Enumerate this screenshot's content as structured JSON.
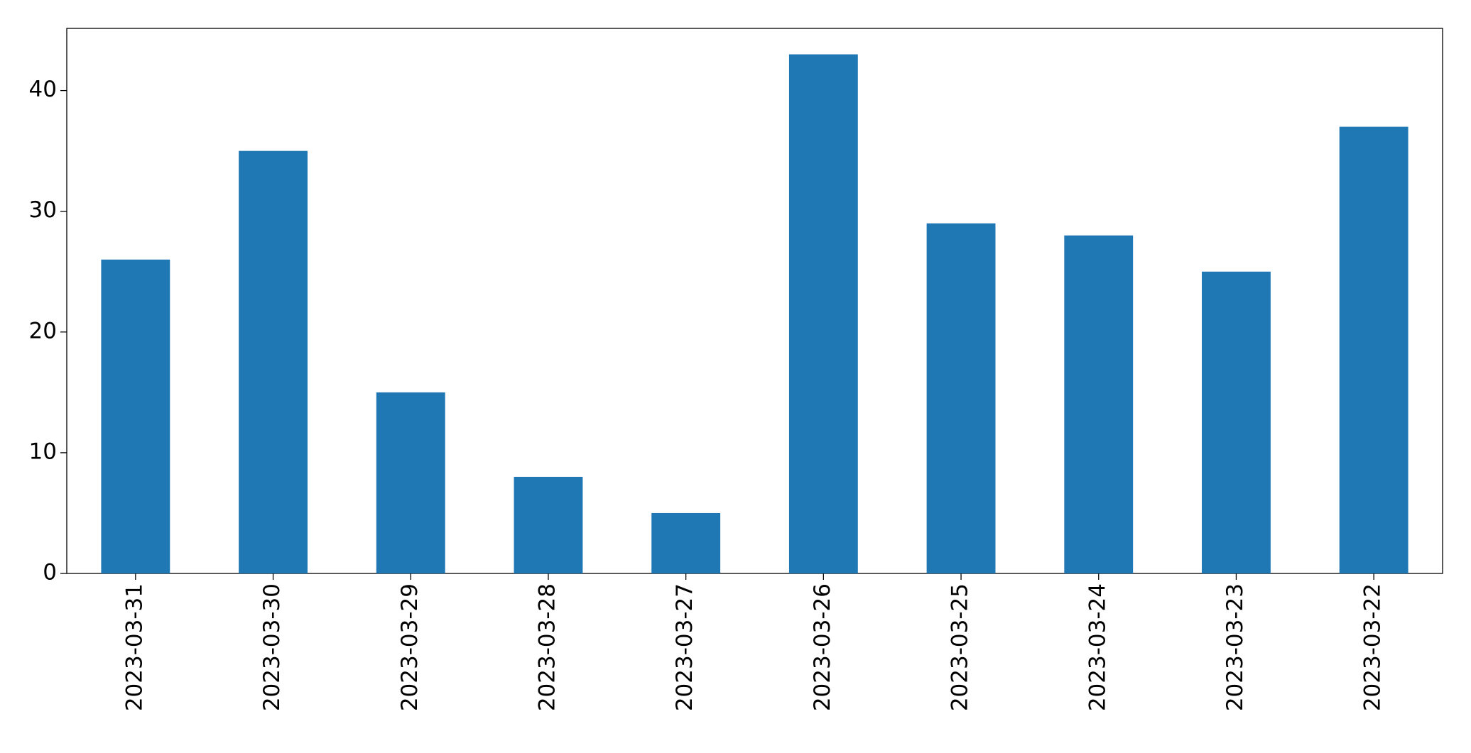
{
  "chart_data": {
    "type": "bar",
    "categories": [
      "2023-03-31",
      "2023-03-30",
      "2023-03-29",
      "2023-03-28",
      "2023-03-27",
      "2023-03-26",
      "2023-03-25",
      "2023-03-24",
      "2023-03-23",
      "2023-03-22"
    ],
    "values": [
      26,
      35,
      15,
      8,
      5,
      43,
      29,
      28,
      25,
      37
    ],
    "color": "#1f77b4",
    "ylim": [
      0,
      45.15
    ],
    "yticks": [
      0,
      10,
      20,
      30,
      40
    ],
    "grid": false
  }
}
